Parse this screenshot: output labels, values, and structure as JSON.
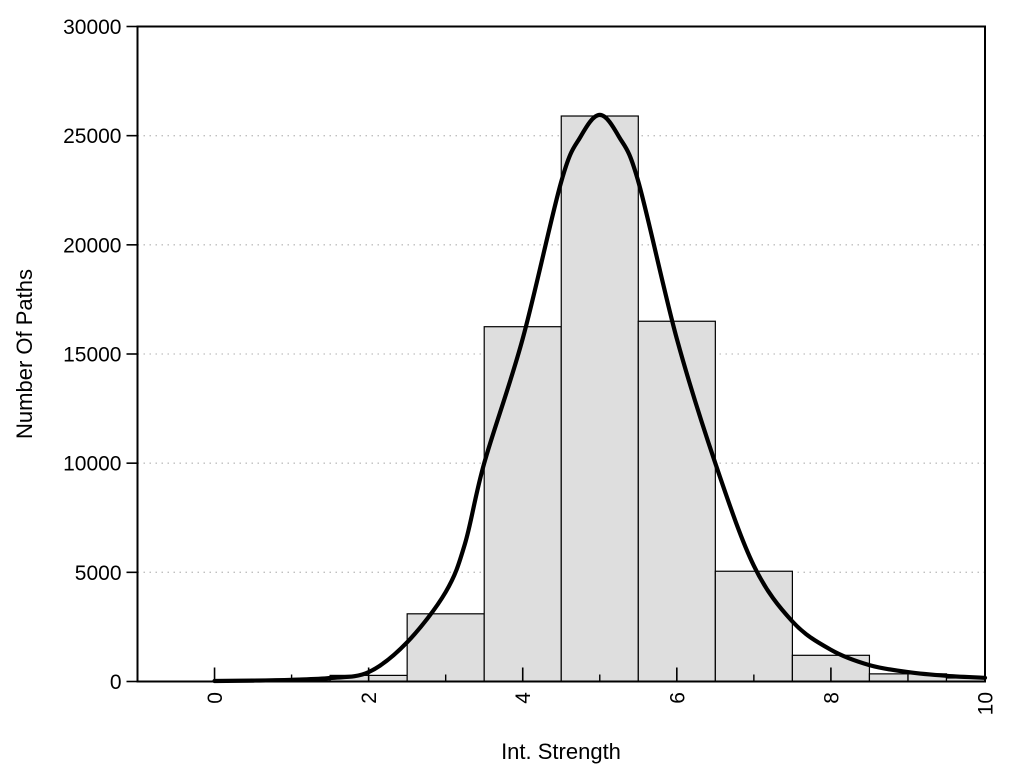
{
  "figure": {
    "background": "#ffffff",
    "plot_border_color": "#000000",
    "bar_fill": "#dedede",
    "bar_stroke": "#000000",
    "grid_color": "#bfbfbf",
    "curve_color": "#000000",
    "text_color": "#000000"
  },
  "chart_data": {
    "type": "bar",
    "subtype": "histogram-with-fit-curve",
    "title": "",
    "xlabel": "Int. Strength",
    "ylabel": "Number Of Paths",
    "xlim": [
      -1,
      10
    ],
    "ylim": [
      0,
      30000
    ],
    "x_major_ticks": [
      0,
      2,
      4,
      6,
      8,
      10
    ],
    "x_minor_ticks": [
      1,
      3,
      5,
      7,
      9
    ],
    "y_ticks": [
      0,
      5000,
      10000,
      15000,
      20000,
      25000,
      30000
    ],
    "y_gridlines": [
      5000,
      10000,
      15000,
      20000,
      25000
    ],
    "grid_style": "dotted",
    "legend": "none",
    "bars": {
      "bin_width": 1,
      "bin_centers": [
        1,
        2,
        3,
        4,
        5,
        6,
        7,
        8,
        9,
        10
      ],
      "counts": [
        30,
        280,
        3100,
        16250,
        25900,
        16500,
        5050,
        1200,
        350,
        160
      ]
    },
    "curve": {
      "name": "bell-shaped fit curve",
      "peak_x": 5,
      "peak_y": 25950,
      "points": [
        [
          0,
          25
        ],
        [
          0.5,
          40
        ],
        [
          1,
          80
        ],
        [
          1.5,
          160
        ],
        [
          2,
          430
        ],
        [
          2.5,
          1800
        ],
        [
          3,
          4100
        ],
        [
          3.25,
          6300
        ],
        [
          3.5,
          10000
        ],
        [
          4,
          15700
        ],
        [
          4.5,
          22900
        ],
        [
          4.75,
          24950
        ],
        [
          5,
          25950
        ],
        [
          5.25,
          24950
        ],
        [
          5.5,
          22900
        ],
        [
          6,
          15700
        ],
        [
          6.5,
          10000
        ],
        [
          7,
          5300
        ],
        [
          7.5,
          2750
        ],
        [
          8,
          1450
        ],
        [
          8.5,
          750
        ],
        [
          9,
          430
        ],
        [
          9.5,
          260
        ],
        [
          10,
          170
        ]
      ]
    }
  }
}
